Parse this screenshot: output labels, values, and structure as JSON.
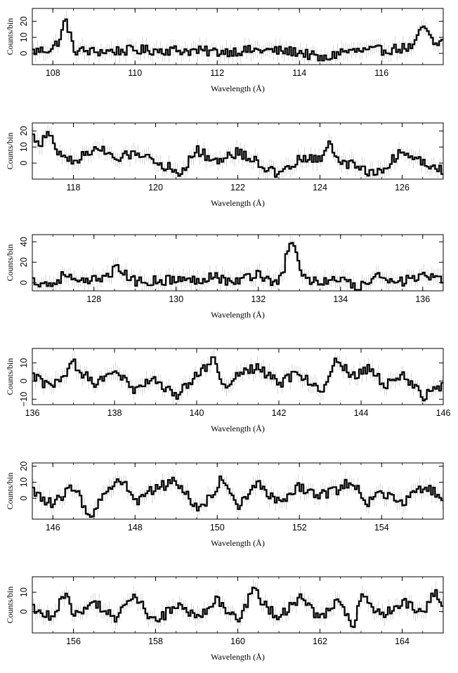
{
  "figure": {
    "stroke_color": "#000000",
    "error_bar_color": "#bbbbbb",
    "background": "#ffffff"
  },
  "chart_data": [
    {
      "type": "line",
      "style": "step-histogram with error bars",
      "xlabel": "Wavelength (Å)",
      "ylabel": "Counts/bin",
      "xlim": [
        107.5,
        117.5
      ],
      "ylim": [
        -7,
        28
      ],
      "xticks": [
        "108",
        "110",
        "112",
        "114",
        "116"
      ],
      "yticks": [
        "0",
        "10",
        "20"
      ],
      "x": [
        107.5,
        108.0,
        108.2,
        108.3,
        108.4,
        108.5,
        109.0,
        110.0,
        111.0,
        112.0,
        113.0,
        114.0,
        114.6,
        115.0,
        116.0,
        116.8,
        117.0,
        117.1,
        117.2,
        117.3,
        117.5
      ],
      "values": [
        1,
        3,
        10,
        22,
        14,
        2,
        1,
        2,
        2,
        1,
        2,
        1,
        -4,
        1,
        2,
        4,
        18,
        13,
        9,
        5,
        8
      ]
    },
    {
      "type": "line",
      "style": "step-histogram with error bars",
      "xlabel": "Wavelength (Å)",
      "ylabel": "Counts/bin",
      "xlim": [
        117.0,
        127.0
      ],
      "ylim": [
        -10,
        25
      ],
      "xticks": [
        "118",
        "120",
        "122",
        "124",
        "126"
      ],
      "yticks": [
        "0",
        "10",
        "20"
      ],
      "x": [
        117.0,
        117.2,
        117.4,
        117.6,
        118.0,
        118.6,
        119.0,
        119.6,
        120.0,
        120.6,
        121.0,
        121.5,
        122.0,
        122.4,
        123.0,
        123.5,
        124.0,
        124.2,
        124.5,
        125.0,
        125.4,
        125.8,
        126.0,
        126.5,
        127.0
      ],
      "values": [
        17,
        12,
        19,
        7,
        1,
        10,
        2,
        7,
        1,
        -6,
        8,
        1,
        7,
        2,
        -8,
        2,
        3,
        12,
        1,
        -3,
        -7,
        3,
        7,
        1,
        -4
      ]
    },
    {
      "type": "line",
      "style": "step-histogram with error bars",
      "xlabel": "Wavelength (Å)",
      "ylabel": "Counts/bin",
      "xlim": [
        126.5,
        136.5
      ],
      "ylim": [
        -8,
        47
      ],
      "xticks": [
        "128",
        "130",
        "132",
        "134",
        "136"
      ],
      "yticks": [
        "0",
        "20",
        "40"
      ],
      "x": [
        126.5,
        127.0,
        127.3,
        127.6,
        128.0,
        128.6,
        128.7,
        129.0,
        129.5,
        130.0,
        130.5,
        130.9,
        131.2,
        131.5,
        132.0,
        132.3,
        132.6,
        132.7,
        132.8,
        132.9,
        133.0,
        133.2,
        133.5,
        134.0,
        134.4,
        134.6,
        135.0,
        135.5,
        136.0,
        136.5
      ],
      "values": [
        2,
        -2,
        9,
        -1,
        2,
        14,
        10,
        1,
        2,
        3,
        2,
        8,
        2,
        1,
        10,
        0,
        6,
        30,
        38,
        35,
        15,
        2,
        1,
        3,
        -6,
        -2,
        7,
        1,
        6,
        1
      ]
    },
    {
      "type": "line",
      "style": "step-histogram with error bars",
      "xlabel": "Wavelength (Å)",
      "ylabel": "Counts/bin",
      "xlim": [
        136.0,
        146.0
      ],
      "ylim": [
        -13,
        18
      ],
      "xticks": [
        "136",
        "138",
        "140",
        "142",
        "144",
        "146"
      ],
      "yticks": [
        "0",
        "10",
        "−10"
      ],
      "x": [
        136.0,
        136.5,
        137.0,
        137.5,
        138.0,
        138.5,
        139.0,
        139.5,
        140.0,
        140.4,
        140.7,
        141.0,
        141.5,
        142.0,
        142.5,
        143.0,
        143.4,
        143.8,
        144.2,
        144.6,
        145.0,
        145.5,
        146.0
      ],
      "values": [
        3,
        -4,
        10,
        -2,
        7,
        -6,
        2,
        -9,
        3,
        12,
        -6,
        4,
        8,
        -2,
        5,
        -7,
        13,
        2,
        8,
        -3,
        5,
        -9,
        -2
      ]
    },
    {
      "type": "line",
      "style": "step-histogram with error bars",
      "xlabel": "Wavelength (Å)",
      "ylabel": "Counts/bin",
      "xlim": [
        145.5,
        155.5
      ],
      "ylim": [
        -13,
        22
      ],
      "xticks": [
        "146",
        "148",
        "150",
        "152",
        "154"
      ],
      "yticks": [
        "0",
        "10",
        "20"
      ],
      "x": [
        145.5,
        146.0,
        146.5,
        146.9,
        147.3,
        147.7,
        148.0,
        148.5,
        149.0,
        149.5,
        150.0,
        150.1,
        150.5,
        151.0,
        151.5,
        152.0,
        152.5,
        153.0,
        153.3,
        153.6,
        154.0,
        154.5,
        155.0,
        155.5
      ],
      "values": [
        5,
        -4,
        8,
        -11,
        4,
        12,
        -2,
        6,
        11,
        -5,
        2,
        15,
        -6,
        9,
        -2,
        7,
        2,
        6,
        12,
        -4,
        3,
        -3,
        7,
        1
      ]
    },
    {
      "type": "line",
      "style": "step-histogram with error bars",
      "xlabel": "Wavelength (Å)",
      "ylabel": "Counts/bin",
      "xlim": [
        155.0,
        165.0
      ],
      "ylim": [
        -11,
        18
      ],
      "xticks": [
        "156",
        "158",
        "160",
        "162",
        "164"
      ],
      "yticks": [
        "0",
        "10"
      ],
      "x": [
        155.0,
        155.5,
        155.8,
        156.0,
        156.5,
        157.0,
        157.5,
        158.0,
        158.5,
        159.0,
        159.5,
        160.0,
        160.4,
        160.6,
        161.0,
        161.5,
        162.0,
        162.5,
        162.8,
        163.0,
        163.5,
        164.0,
        164.5,
        164.8,
        165.0
      ],
      "values": [
        2,
        -3,
        10,
        -2,
        5,
        -4,
        8,
        -6,
        4,
        -3,
        6,
        -5,
        12,
        4,
        -3,
        7,
        -4,
        6,
        -8,
        8,
        -2,
        5,
        -1,
        11,
        2
      ]
    }
  ]
}
